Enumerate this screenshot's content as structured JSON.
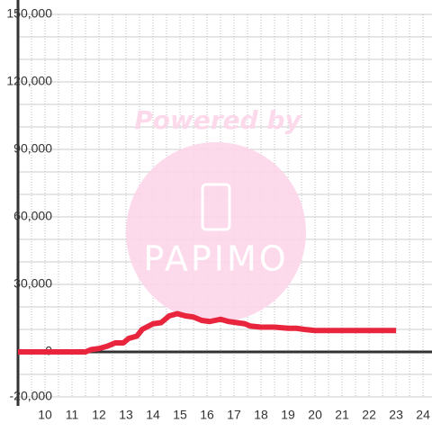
{
  "chart_data": {
    "type": "line",
    "watermark": {
      "top": "Powered by",
      "brand": "PAPIMO"
    },
    "x": [
      9,
      11.5,
      11.7,
      12,
      12.3,
      12.6,
      12.9,
      13.1,
      13.4,
      13.6,
      14,
      14.3,
      14.6,
      14.9,
      15.2,
      15.5,
      15.8,
      16.1,
      16.5,
      16.8,
      17.1,
      17.4,
      17.6,
      18,
      18.5,
      19,
      19.3,
      19.6,
      20,
      21,
      22,
      23
    ],
    "series": [
      {
        "color": "#e8253d",
        "values": [
          0,
          0,
          1000,
          1500,
          2500,
          4000,
          4000,
          6000,
          7000,
          10000,
          12500,
          13000,
          16000,
          17000,
          16000,
          15500,
          14000,
          13500,
          14500,
          13500,
          13000,
          12500,
          11500,
          11000,
          11000,
          10500,
          10500,
          10000,
          9500,
          9500,
          9500,
          9500
        ]
      }
    ],
    "xlim": [
      9,
      24.33
    ],
    "xticks": [
      10,
      11,
      12,
      13,
      14,
      15,
      16,
      17,
      18,
      19,
      20,
      21,
      22,
      23,
      24
    ],
    "x_minor_ticks": [
      9.5,
      10.5,
      11.5,
      12.5,
      13.5,
      14.5,
      15.5,
      16.5,
      17.5,
      18.5,
      19.5,
      20.5,
      21.5,
      22.5,
      23.5
    ],
    "ylim": [
      -20000,
      150000
    ],
    "yticks": [
      {
        "value": -20000,
        "label": "-20,000"
      },
      0,
      {
        "value": 30000,
        "label": "30,000"
      },
      {
        "value": 60000,
        "label": "60,000"
      },
      {
        "value": 90000,
        "label": "90,000"
      },
      {
        "value": 120000,
        "label": "120,000"
      },
      {
        "value": 150000,
        "label": "150,000"
      }
    ],
    "y_minor_ticks": [
      -10000,
      10000,
      20000,
      40000,
      50000,
      70000,
      80000,
      100000,
      110000,
      130000,
      140000
    ],
    "grid": true
  }
}
